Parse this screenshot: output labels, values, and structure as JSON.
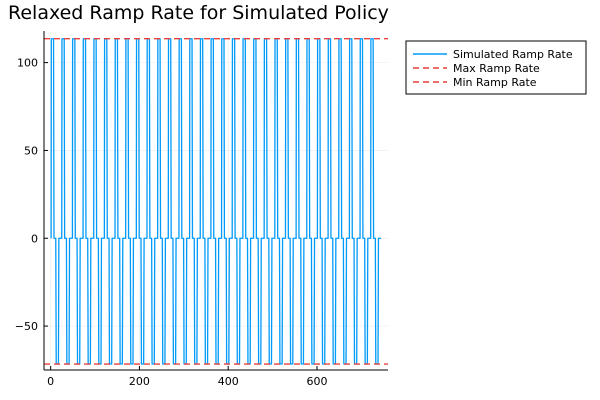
{
  "chart_data": {
    "type": "line",
    "title": "Relaxed Ramp Rate for Simulated Policy",
    "xlabel": "",
    "ylabel": "",
    "xlim": [
      -15,
      760
    ],
    "ylim": [
      -75,
      118
    ],
    "x_ticks": [
      0,
      200,
      400,
      600
    ],
    "y_ticks": [
      -50,
      0,
      50,
      100
    ],
    "y_tick_labels": [
      "−50",
      "0",
      "50",
      "100"
    ],
    "grid": true,
    "legend_position": "top-right (outside plot)",
    "series": [
      {
        "name": "Simulated Ramp Rate",
        "color": "#009af9",
        "style": "solid",
        "pattern": {
          "start_x": 1,
          "end_x": 744,
          "period": 24,
          "cycles": 31,
          "high_value": 113.6,
          "low_value": -71.6,
          "zero_value": 0,
          "description": "per-cycle offsets: up to high at 0.5, hold to 5.5, drop to 0 at 6.5, hold to 10.5, drop to low at 11.5, hold to 16.5, rise to 0 at 17.5, hold to 24"
        }
      },
      {
        "name": "Max Ramp Rate",
        "color": "#e8413b",
        "style": "dashed",
        "value": 113.6
      },
      {
        "name": "Min Ramp Rate",
        "color": "#e8413b",
        "style": "dashed",
        "value": -71.6
      }
    ]
  }
}
